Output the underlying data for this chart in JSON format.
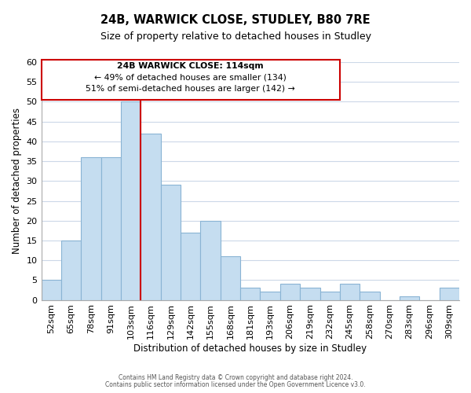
{
  "title": "24B, WARWICK CLOSE, STUDLEY, B80 7RE",
  "subtitle": "Size of property relative to detached houses in Studley",
  "xlabel": "Distribution of detached houses by size in Studley",
  "ylabel": "Number of detached properties",
  "bar_color": "#c5ddf0",
  "bar_edge_color": "#8ab4d4",
  "categories": [
    "52sqm",
    "65sqm",
    "78sqm",
    "91sqm",
    "103sqm",
    "116sqm",
    "129sqm",
    "142sqm",
    "155sqm",
    "168sqm",
    "181sqm",
    "193sqm",
    "206sqm",
    "219sqm",
    "232sqm",
    "245sqm",
    "258sqm",
    "270sqm",
    "283sqm",
    "296sqm",
    "309sqm"
  ],
  "values": [
    5,
    15,
    36,
    36,
    50,
    42,
    29,
    17,
    20,
    11,
    3,
    2,
    4,
    3,
    2,
    4,
    2,
    0,
    1,
    0,
    3
  ],
  "ylim": [
    0,
    60
  ],
  "yticks": [
    0,
    5,
    10,
    15,
    20,
    25,
    30,
    35,
    40,
    45,
    50,
    55,
    60
  ],
  "vline_color": "#cc0000",
  "vline_index": 4.5,
  "annotation_title": "24B WARWICK CLOSE: 114sqm",
  "annotation_line1": "← 49% of detached houses are smaller (134)",
  "annotation_line2": "51% of semi-detached houses are larger (142) →",
  "footer1": "Contains HM Land Registry data © Crown copyright and database right 2024.",
  "footer2": "Contains public sector information licensed under the Open Government Licence v3.0.",
  "background_color": "#ffffff",
  "grid_color": "#ccd8e8"
}
